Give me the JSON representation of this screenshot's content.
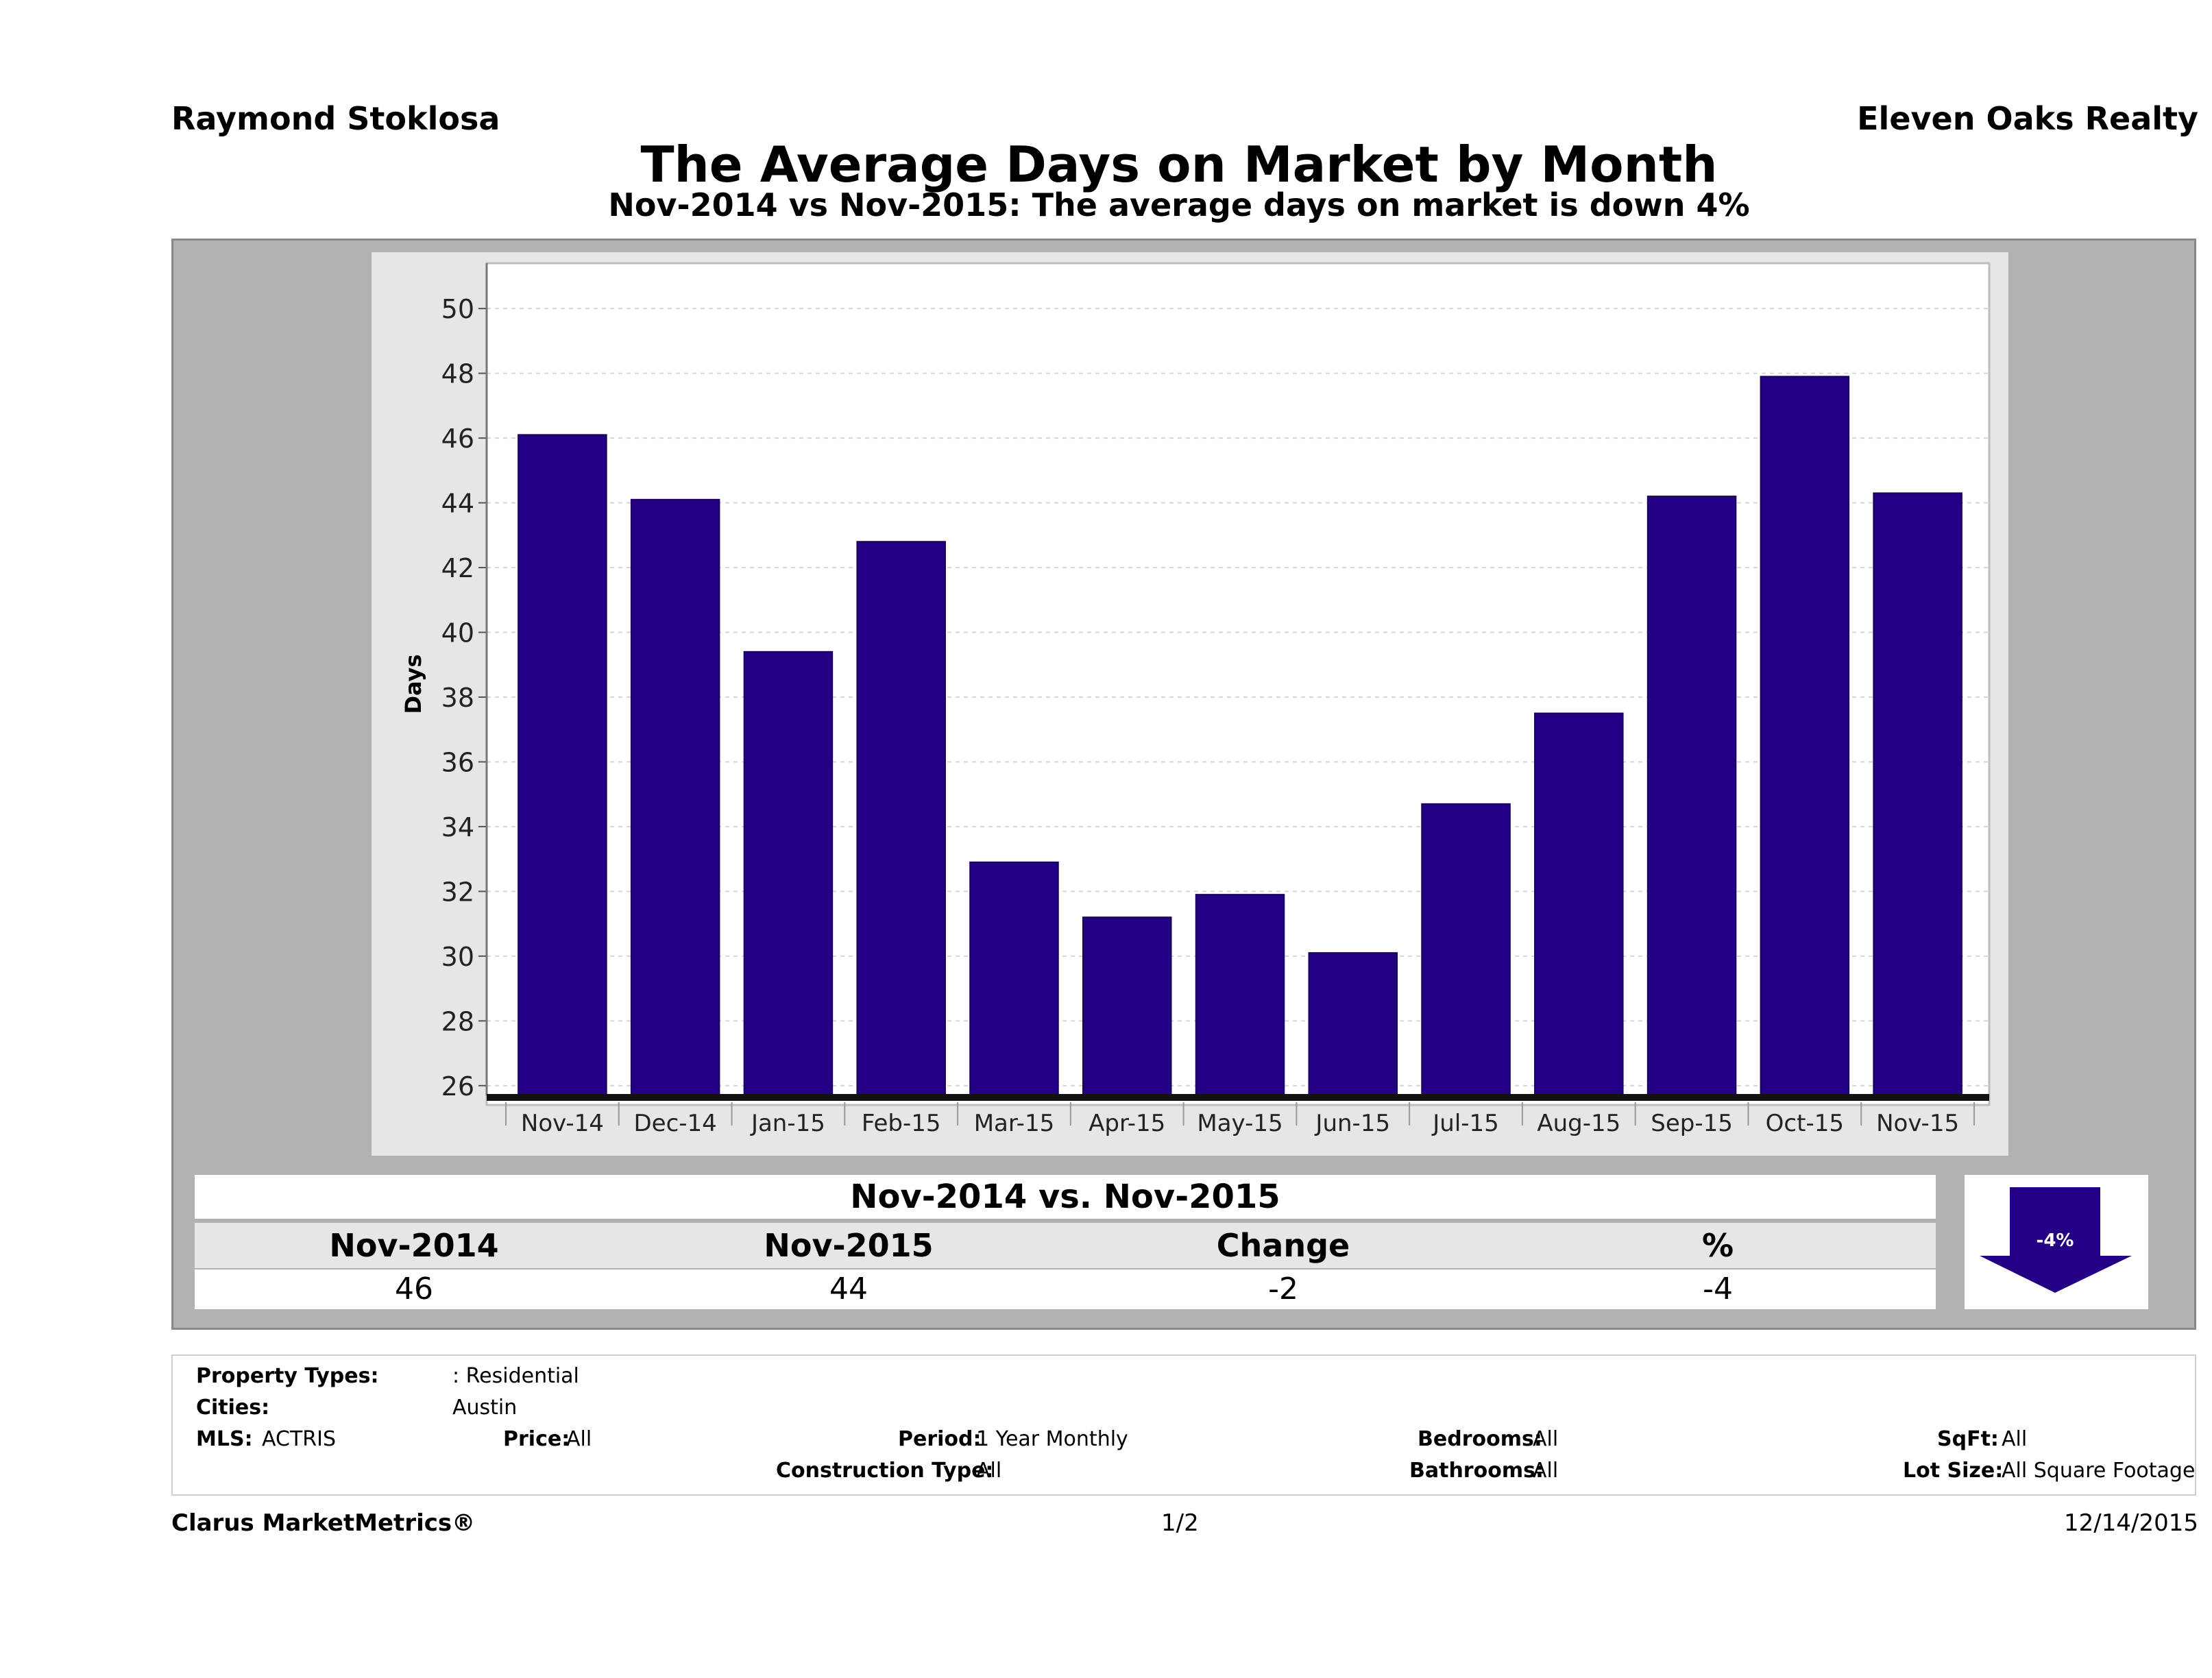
{
  "header": {
    "agent": "Raymond Stoklosa",
    "company": "Eleven Oaks Realty",
    "title": "The Average Days on Market by Month",
    "subtitle": "Nov-2014 vs Nov-2015: The average days on market is down 4%"
  },
  "chart_data": {
    "type": "bar",
    "title": "The Average Days on Market by Month",
    "ylabel": "Days",
    "xlabel": "",
    "categories": [
      "Nov-14",
      "Dec-14",
      "Jan-15",
      "Feb-15",
      "Mar-15",
      "Apr-15",
      "May-15",
      "Jun-15",
      "Jul-15",
      "Aug-15",
      "Sep-15",
      "Oct-15",
      "Nov-15"
    ],
    "values": [
      46.1,
      44.1,
      39.4,
      42.8,
      32.9,
      31.2,
      31.9,
      30.1,
      34.7,
      37.5,
      44.2,
      47.9,
      44.3
    ],
    "ylim": [
      25.7,
      51.4
    ],
    "yticks": [
      26,
      28,
      30,
      32,
      34,
      36,
      38,
      40,
      42,
      44,
      46,
      48,
      50
    ],
    "grid": true,
    "bar_color": "#240085"
  },
  "summary": {
    "title": "Nov-2014 vs. Nov-2015",
    "columns": [
      "Nov-2014",
      "Nov-2015",
      "Change",
      "%"
    ],
    "values": [
      "46",
      "44",
      "-2",
      "-4"
    ],
    "badge": "-4%",
    "badge_icon": "down-arrow-icon"
  },
  "filters": {
    "property_types_label": "Property Types:",
    "property_types_value": ": Residential",
    "cities_label": "Cities:",
    "cities_value": "Austin",
    "mls_label": "MLS:",
    "mls_value": "ACTRIS",
    "price_label": "Price:",
    "price_value": "All",
    "period_label": "Period:",
    "period_value": "1 Year Monthly",
    "construction_label": "Construction Type:",
    "construction_value": "All",
    "bedrooms_label": "Bedrooms:",
    "bedrooms_value": "All",
    "bathrooms_label": "Bathrooms:",
    "bathrooms_value": "All",
    "sqft_label": "SqFt:",
    "sqft_value": "All",
    "lotsize_label": "Lot Size:",
    "lotsize_value": "All Square Footage"
  },
  "footer": {
    "brand": "Clarus MarketMetrics®",
    "page": "1/2",
    "date": "12/14/2015"
  }
}
